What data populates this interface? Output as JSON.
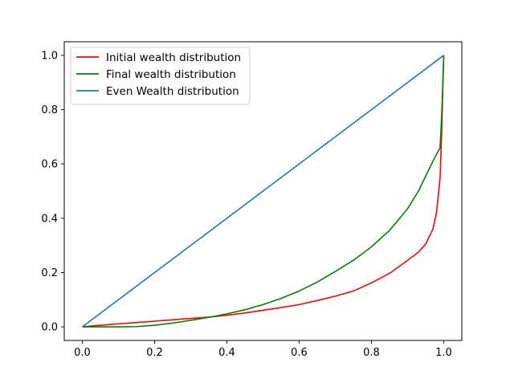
{
  "chart_data": {
    "type": "line",
    "title": "",
    "xlabel": "",
    "ylabel": "",
    "xlim": [
      -0.05,
      1.05
    ],
    "ylim": [
      -0.05,
      1.05
    ],
    "xticks": [
      "0.0",
      "0.2",
      "0.4",
      "0.6",
      "0.8",
      "1.0"
    ],
    "yticks": [
      "0.0",
      "0.2",
      "0.4",
      "0.6",
      "0.8",
      "1.0"
    ],
    "grid": false,
    "legend_position": "upper-left",
    "series": [
      {
        "name": "Initial wealth distribution",
        "color": "#ff0000",
        "x": [
          0,
          0.05,
          0.1,
          0.15,
          0.2,
          0.25,
          0.3,
          0.35,
          0.4,
          0.45,
          0.5,
          0.55,
          0.6,
          0.65,
          0.7,
          0.75,
          0.8,
          0.85,
          0.9,
          0.93,
          0.95,
          0.97,
          0.98,
          0.99,
          0.995,
          1.0
        ],
        "y": [
          0,
          0.006,
          0.011,
          0.016,
          0.021,
          0.026,
          0.031,
          0.036,
          0.043,
          0.051,
          0.061,
          0.071,
          0.082,
          0.097,
          0.113,
          0.132,
          0.162,
          0.197,
          0.245,
          0.275,
          0.305,
          0.36,
          0.42,
          0.55,
          0.75,
          1.0
        ]
      },
      {
        "name": "Final wealth distribution",
        "color": "#008000",
        "x": [
          0,
          0.05,
          0.1,
          0.15,
          0.2,
          0.25,
          0.3,
          0.35,
          0.4,
          0.45,
          0.5,
          0.55,
          0.6,
          0.65,
          0.7,
          0.75,
          0.8,
          0.85,
          0.9,
          0.93,
          0.95,
          0.97,
          0.99,
          0.995,
          1.0
        ],
        "y": [
          0,
          0,
          0,
          0.001,
          0.006,
          0.014,
          0.024,
          0.035,
          0.048,
          0.063,
          0.082,
          0.105,
          0.132,
          0.165,
          0.204,
          0.245,
          0.295,
          0.355,
          0.435,
          0.5,
          0.555,
          0.61,
          0.66,
          0.8,
          1.0
        ]
      },
      {
        "name": "Even Wealth distribution",
        "color": "#1f77b4",
        "x": [
          0,
          1
        ],
        "y": [
          0,
          1
        ]
      }
    ]
  }
}
